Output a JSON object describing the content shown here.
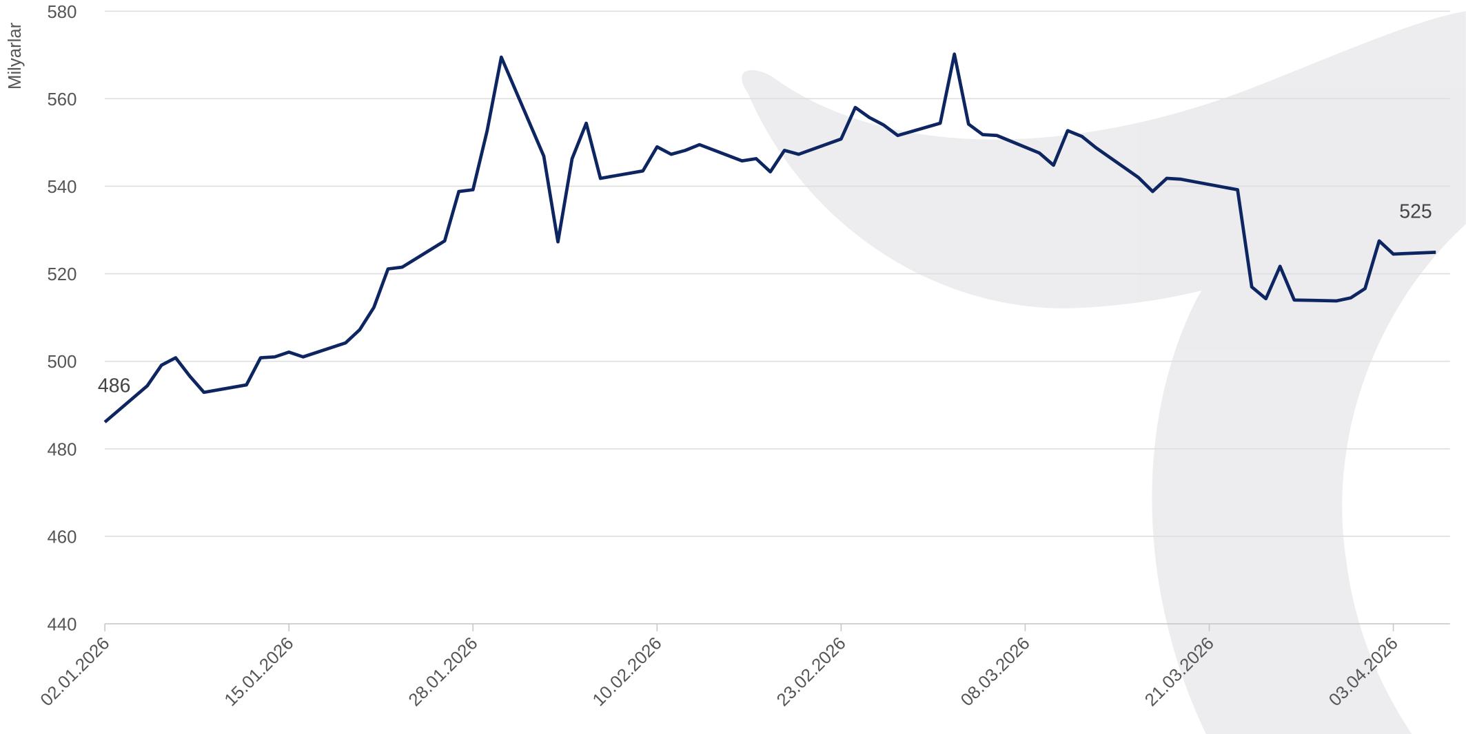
{
  "chart_data": {
    "type": "line",
    "y_label": "Milyarlar",
    "x": [
      "02.01.2026",
      "05.01.2026",
      "06.01.2026",
      "07.01.2026",
      "08.01.2026",
      "09.01.2026",
      "12.01.2026",
      "13.01.2026",
      "14.01.2026",
      "15.01.2026",
      "16.01.2026",
      "19.01.2026",
      "20.01.2026",
      "21.01.2026",
      "22.01.2026",
      "23.01.2026",
      "26.01.2026",
      "27.01.2026",
      "28.01.2026",
      "29.01.2026",
      "30.01.2026",
      "02.02.2026",
      "03.02.2026",
      "04.02.2026",
      "05.02.2026",
      "06.02.2026",
      "09.02.2026",
      "10.02.2026",
      "11.02.2026",
      "12.02.2026",
      "13.02.2026",
      "16.02.2026",
      "17.02.2026",
      "18.02.2026",
      "19.02.2026",
      "20.02.2026",
      "23.02.2026",
      "24.02.2026",
      "25.02.2026",
      "26.02.2026",
      "27.02.2026",
      "02.03.2026",
      "03.03.2026",
      "04.03.2026",
      "05.03.2026",
      "06.03.2026",
      "09.03.2026",
      "10.03.2026",
      "11.03.2026",
      "12.03.2026",
      "13.03.2026",
      "16.03.2026",
      "17.03.2026",
      "18.03.2026",
      "19.03.2026",
      "23.03.2026",
      "24.03.2026",
      "25.03.2026",
      "26.03.2026",
      "27.03.2026",
      "30.03.2026",
      "31.03.2026",
      "01.04.2026",
      "02.04.2026",
      "03.04.2026",
      "06.04.2026"
    ],
    "series": [
      {
        "color": "#0d2560",
        "values": [
          486.1,
          494.4,
          499.1,
          500.8,
          496.6,
          492.9,
          494.6,
          500.8,
          501.0,
          502.1,
          501.0,
          504.2,
          507.2,
          512.3,
          521.1,
          521.5,
          527.5,
          538.8,
          539.2,
          552.7,
          569.5,
          546.9,
          527.3,
          546.3,
          554.4,
          541.8,
          543.5,
          549.0,
          547.3,
          548.2,
          549.5,
          545.8,
          546.3,
          543.3,
          548.2,
          547.3,
          550.8,
          558.0,
          555.7,
          554.0,
          551.6,
          554.4,
          570.2,
          554.2,
          551.8,
          551.6,
          547.6,
          544.8,
          552.7,
          551.4,
          548.8,
          542.0,
          538.8,
          541.8,
          541.6,
          539.2,
          517.0,
          514.3,
          521.7,
          514.0,
          513.8,
          514.5,
          516.6,
          527.5,
          524.5,
          524.9
        ],
        "value_labels": [
          "486",
          null,
          null,
          null,
          null,
          null,
          null,
          null,
          null,
          null,
          null,
          null,
          null,
          null,
          null,
          null,
          null,
          null,
          null,
          null,
          null,
          null,
          null,
          null,
          null,
          null,
          null,
          null,
          null,
          null,
          null,
          null,
          null,
          null,
          null,
          null,
          null,
          null,
          null,
          null,
          null,
          null,
          null,
          null,
          null,
          null,
          null,
          null,
          null,
          null,
          null,
          null,
          null,
          null,
          null,
          null,
          null,
          null,
          null,
          null,
          null,
          null,
          null,
          null,
          null,
          "525"
        ]
      }
    ],
    "xlim": [
      "02.01.2026",
      "07.04.2026"
    ],
    "xticks": [
      "02.01.2026",
      "15.01.2026",
      "28.01.2026",
      "10.02.2026",
      "23.02.2026",
      "08.03.2026",
      "21.03.2026",
      "03.04.2026"
    ],
    "ylim": [
      440,
      580
    ],
    "yticks": [
      440,
      460,
      480,
      500,
      520,
      540,
      560,
      580
    ],
    "grid": true
  }
}
